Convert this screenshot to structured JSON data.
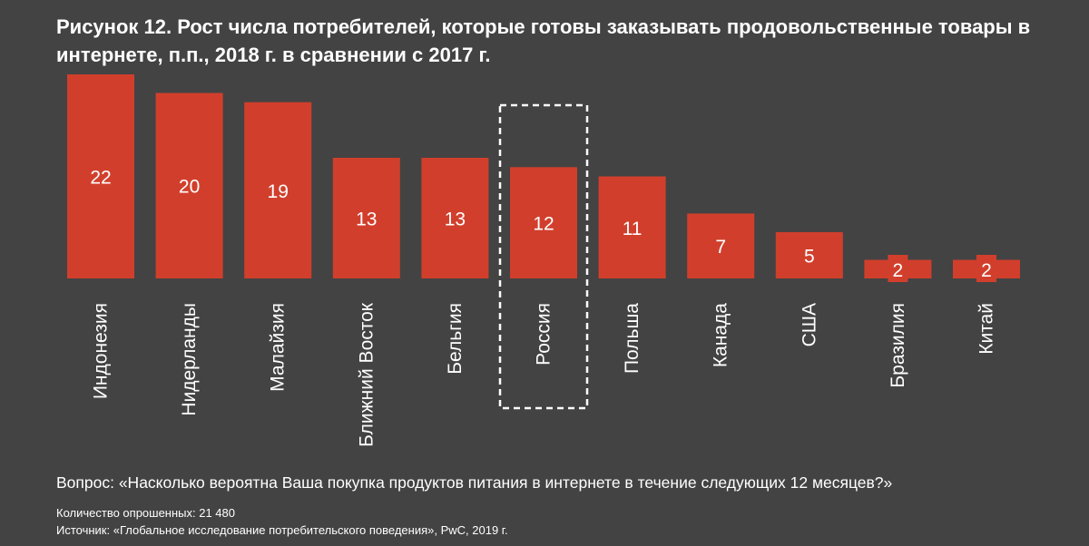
{
  "title": "Рисунок 12. Рост числа потребителей, которые готовы заказывать продовольственные товары в интернете, п.п., 2018 г. в сравнении с 2017 г.",
  "question": "Вопрос: «Насколько вероятна Ваша покупка продуктов питания в интернете в течение следующих 12 месяцев?»",
  "respondents": "Количество опрошенных: 21 480",
  "source": "Источник: «Глобальное исследование потребительского поведения», PwC, 2019 г.",
  "colors": {
    "background": "#434343",
    "bar": "#d13f2c",
    "text": "#ffffff",
    "highlight_border": "#ffffff"
  },
  "chart_data": {
    "type": "bar",
    "categories": [
      "Индонезия",
      "Нидерланды",
      "Малайзия",
      "Ближний Восток",
      "Бельгия",
      "Россия",
      "Польша",
      "Канада",
      "США",
      "Бразилия",
      "Китай"
    ],
    "values": [
      22,
      20,
      19,
      13,
      13,
      12,
      11,
      7,
      5,
      2,
      2
    ],
    "highlighted_category": "Россия",
    "ylim": [
      0,
      22
    ],
    "grid": false,
    "legend": "none"
  }
}
